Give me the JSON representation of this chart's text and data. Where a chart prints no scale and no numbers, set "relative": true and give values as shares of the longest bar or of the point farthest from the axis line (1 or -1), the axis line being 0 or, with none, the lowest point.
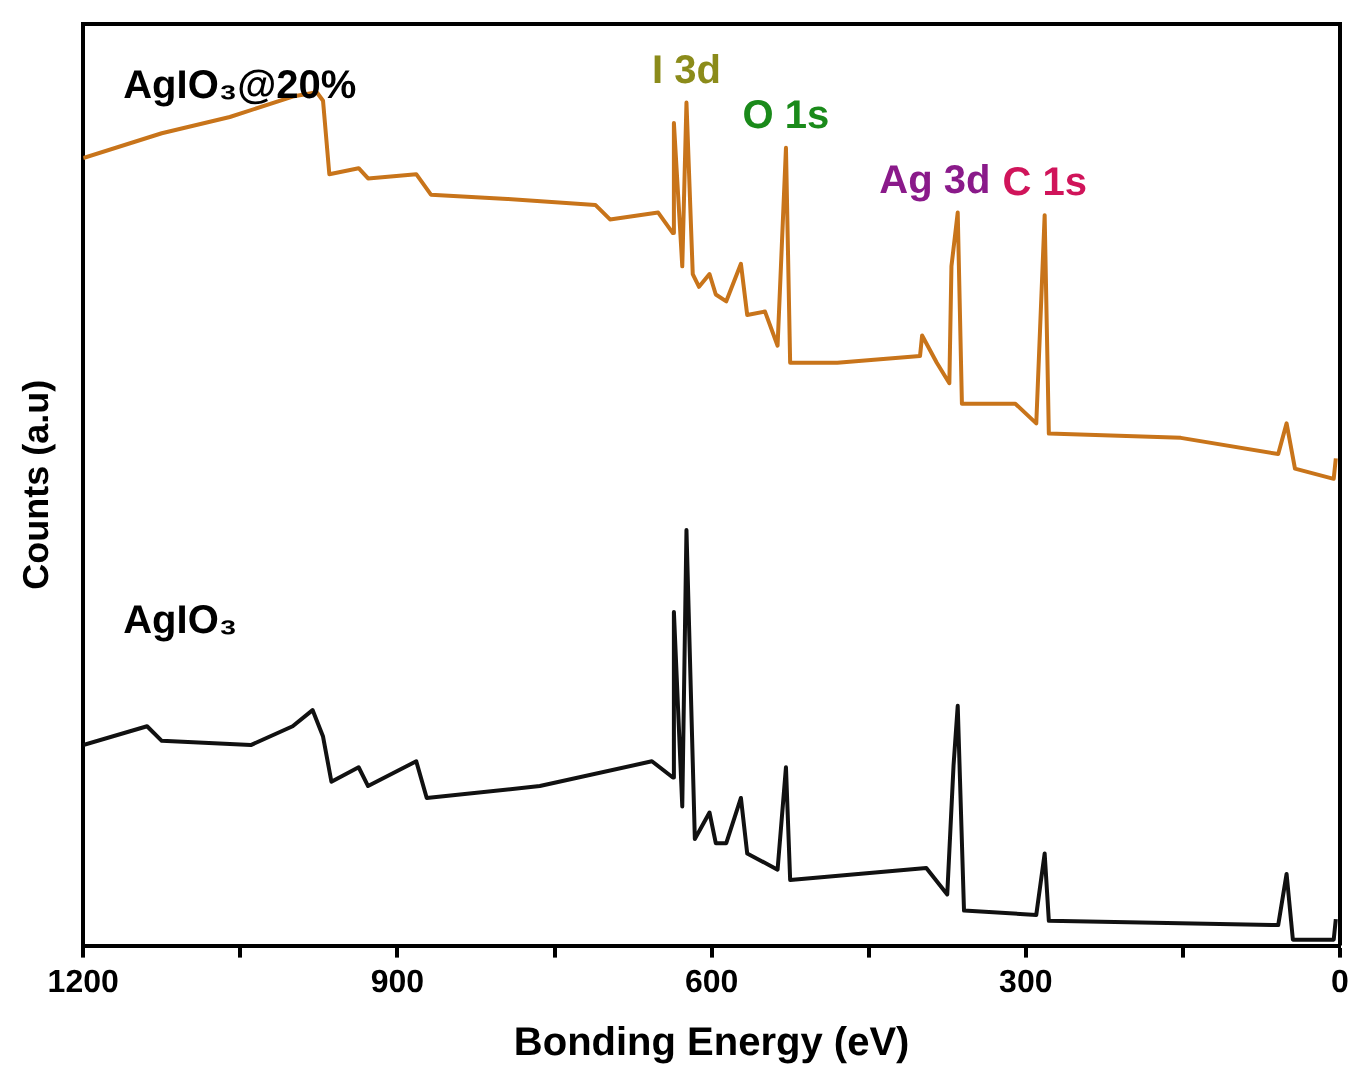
{
  "chart_data": {
    "type": "line",
    "xlabel": "Bonding Energy (eV)",
    "ylabel": "Counts (a.u)",
    "relative": true,
    "legend": false,
    "grid": false,
    "marker": "none",
    "line_style": "solid",
    "xlim": [
      1200,
      0
    ],
    "xticks": [
      1200,
      {
        "value": 1050,
        "label": null
      },
      900,
      {
        "value": 750,
        "label": null
      },
      600,
      {
        "value": 450,
        "label": null
      },
      300,
      {
        "value": 150,
        "label": null
      },
      0
    ],
    "series": [
      {
        "name": "AgIO₃@20%",
        "color": "#c8741a",
        "x": [
          1200,
          1125,
          1060,
          1000,
          977,
          971,
          965,
          937,
          928,
          882,
          868,
          795,
          711,
          697,
          651,
          637,
          636,
          628,
          624,
          618,
          612,
          602,
          596,
          586,
          572,
          566,
          549,
          537,
          529,
          525,
          480,
          401,
          399,
          385,
          373,
          371,
          365,
          361,
          310,
          290,
          282,
          278,
          152,
          59,
          51,
          43,
          6,
          4
        ],
        "values": [
          0.923,
          0.952,
          0.971,
          0.995,
          1.0,
          0.99,
          0.904,
          0.911,
          0.899,
          0.904,
          0.88,
          0.875,
          0.868,
          0.851,
          0.859,
          0.835,
          0.964,
          0.796,
          0.988,
          0.787,
          0.772,
          0.787,
          0.763,
          0.755,
          0.799,
          0.739,
          0.743,
          0.703,
          0.935,
          0.683,
          0.683,
          0.691,
          0.715,
          0.683,
          0.659,
          0.796,
          0.859,
          0.635,
          0.635,
          0.612,
          0.856,
          0.6,
          0.595,
          0.576,
          0.612,
          0.559,
          0.547,
          0.571
        ]
      },
      {
        "name": "AgIO₃",
        "color": "#111111",
        "x": [
          1200,
          1139,
          1125,
          1040,
          1000,
          981,
          971,
          963,
          937,
          928,
          882,
          872,
          764,
          657,
          637,
          636,
          628,
          624,
          616,
          602,
          596,
          586,
          572,
          566,
          537,
          529,
          525,
          395,
          375,
          369,
          365,
          359,
          290,
          282,
          278,
          59,
          51,
          45,
          6,
          4
        ],
        "values": [
          0.235,
          0.257,
          0.24,
          0.235,
          0.257,
          0.276,
          0.245,
          0.192,
          0.209,
          0.187,
          0.216,
          0.173,
          0.187,
          0.216,
          0.197,
          0.391,
          0.163,
          0.487,
          0.125,
          0.156,
          0.12,
          0.12,
          0.173,
          0.108,
          0.089,
          0.209,
          0.077,
          0.091,
          0.06,
          0.211,
          0.281,
          0.041,
          0.036,
          0.108,
          0.029,
          0.024,
          0.084,
          0.007,
          0.007,
          0.031
        ]
      }
    ],
    "annotations": [
      {
        "text": "I 3d",
        "x": 624,
        "y": 0.988
      },
      {
        "text": "O 1s",
        "x": 529,
        "y": 0.935
      },
      {
        "text": "Ag 3d",
        "x": 365,
        "y": 0.859
      },
      {
        "text": "C 1s",
        "x": 282,
        "y": 0.856
      }
    ]
  }
}
